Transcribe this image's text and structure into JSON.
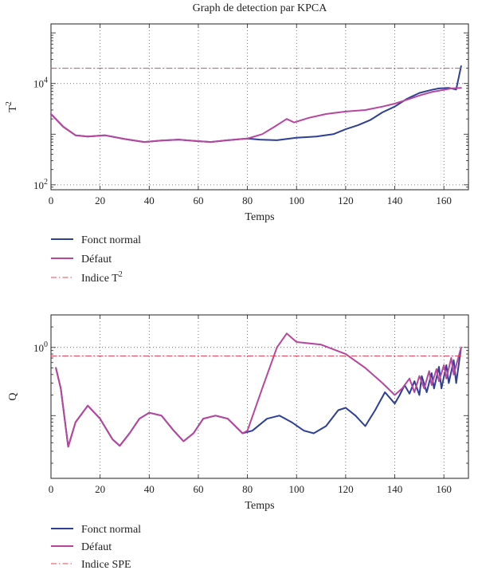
{
  "chart_data": [
    {
      "type": "line",
      "title": "Graph de detection par KPCA",
      "xlabel": "Temps",
      "ylabel": "T",
      "ylabel_sup": "2",
      "yscale": "log",
      "xlim": [
        0,
        170
      ],
      "ylim": [
        80,
        150000
      ],
      "xticks": [
        "0",
        "20",
        "40",
        "60",
        "80",
        "100",
        "120",
        "140",
        "160"
      ],
      "yticks": [
        {
          "value": 100,
          "base": "10",
          "exp": "2"
        },
        {
          "value": 10000,
          "base": "10",
          "exp": "4"
        }
      ],
      "grid": "dotted",
      "legend_position": "below",
      "series": [
        {
          "name": "Fonct normal",
          "color": "#2e3f96",
          "x": [
            0,
            5,
            10,
            15,
            22,
            30,
            38,
            45,
            52,
            58,
            65,
            72,
            80,
            85,
            92,
            100,
            108,
            115,
            120,
            125,
            130,
            135,
            140,
            145,
            150,
            155,
            158,
            162,
            165,
            167
          ],
          "y": [
            2500,
            1400,
            950,
            900,
            950,
            800,
            700,
            750,
            780,
            740,
            700,
            760,
            820,
            780,
            760,
            850,
            900,
            1000,
            1250,
            1500,
            1900,
            2700,
            3500,
            5000,
            6500,
            7500,
            8000,
            8200,
            7600,
            22000
          ]
        },
        {
          "name": "Défaut",
          "color": "#b8469f",
          "x": [
            0,
            5,
            10,
            15,
            22,
            30,
            38,
            45,
            52,
            58,
            65,
            72,
            80,
            86,
            91,
            96,
            99,
            105,
            112,
            120,
            128,
            135,
            140,
            145,
            150,
            155,
            160,
            163,
            167
          ],
          "y": [
            2500,
            1400,
            950,
            900,
            950,
            800,
            700,
            750,
            780,
            740,
            700,
            760,
            820,
            1000,
            1400,
            2000,
            1700,
            2100,
            2500,
            2800,
            3000,
            3500,
            4000,
            4800,
            5800,
            6800,
            7500,
            8000,
            8200
          ]
        },
        {
          "name": "Indice T",
          "name_sup": "2",
          "color": "#e8445a",
          "dash": "dashdot",
          "constant": 20000
        }
      ]
    },
    {
      "type": "line",
      "xlabel": "Temps",
      "ylabel": "Q",
      "yscale": "log",
      "xlim": [
        0,
        170
      ],
      "ylim": [
        0.012,
        3
      ],
      "xticks": [
        "0",
        "20",
        "40",
        "60",
        "80",
        "100",
        "120",
        "140",
        "160"
      ],
      "yticks": [
        {
          "value": 1,
          "base": "10",
          "exp": "0"
        }
      ],
      "grid": "dotted",
      "legend_position": "below",
      "series": [
        {
          "name": "Fonct normal",
          "color": "#2e3f96",
          "x": [
            2,
            4,
            7,
            10,
            15,
            20,
            25,
            28,
            32,
            36,
            40,
            45,
            50,
            54,
            58,
            62,
            67,
            72,
            78,
            82,
            88,
            93,
            98,
            103,
            107,
            112,
            117,
            120,
            124,
            128,
            132,
            136,
            140,
            142,
            144,
            146,
            148,
            150,
            151,
            153,
            155,
            156,
            158,
            159,
            161,
            162,
            164,
            165,
            167
          ],
          "y": [
            0.5,
            0.25,
            0.035,
            0.08,
            0.14,
            0.09,
            0.045,
            0.036,
            0.055,
            0.09,
            0.11,
            0.1,
            0.06,
            0.042,
            0.055,
            0.09,
            0.1,
            0.09,
            0.055,
            0.06,
            0.09,
            0.1,
            0.08,
            0.06,
            0.055,
            0.07,
            0.12,
            0.13,
            0.1,
            0.07,
            0.12,
            0.22,
            0.15,
            0.2,
            0.28,
            0.21,
            0.32,
            0.2,
            0.38,
            0.22,
            0.42,
            0.25,
            0.52,
            0.25,
            0.55,
            0.3,
            0.65,
            0.3,
            1.0
          ]
        },
        {
          "name": "Défaut",
          "color": "#b8469f",
          "x": [
            2,
            4,
            7,
            10,
            15,
            20,
            25,
            28,
            32,
            36,
            40,
            45,
            50,
            54,
            58,
            62,
            67,
            72,
            78,
            80,
            86,
            92,
            96,
            100,
            110,
            120,
            128,
            135,
            140,
            143,
            146,
            148,
            150,
            152,
            154,
            155,
            157,
            158,
            160,
            161,
            163,
            164,
            167
          ],
          "y": [
            0.5,
            0.25,
            0.035,
            0.08,
            0.14,
            0.09,
            0.045,
            0.036,
            0.055,
            0.09,
            0.11,
            0.1,
            0.06,
            0.042,
            0.055,
            0.09,
            0.1,
            0.09,
            0.055,
            0.06,
            0.25,
            1.0,
            1.6,
            1.2,
            1.1,
            0.8,
            0.5,
            0.3,
            0.2,
            0.25,
            0.35,
            0.22,
            0.38,
            0.25,
            0.45,
            0.28,
            0.48,
            0.32,
            0.55,
            0.35,
            0.7,
            0.4,
            1.0
          ]
        },
        {
          "name": "Indice SPE",
          "color": "#e8445a",
          "dash": "dashdot",
          "constant": 0.75
        }
      ]
    }
  ]
}
